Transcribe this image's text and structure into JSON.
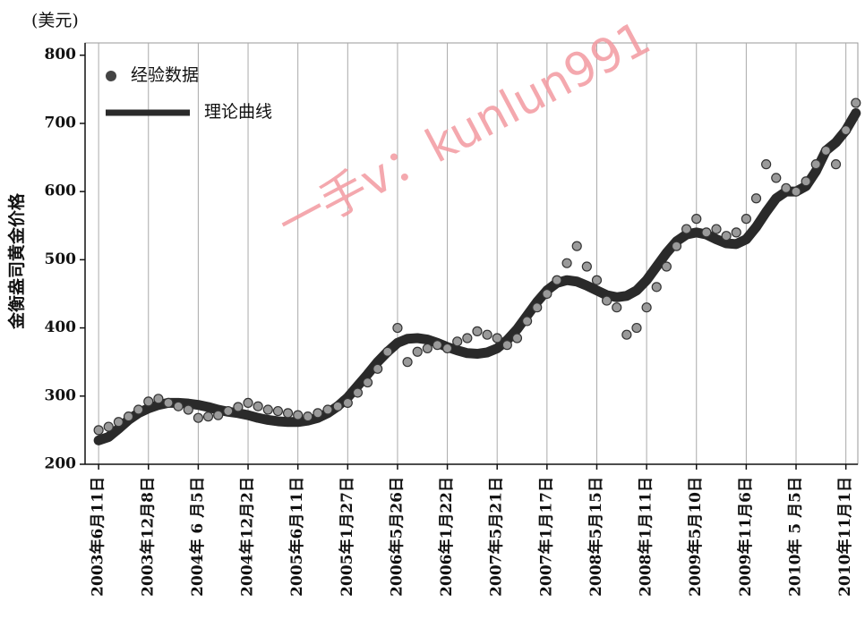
{
  "chart_data": {
    "type": "scatter-line",
    "y_unit": "(美元)",
    "ylabel": "金衡盎司黄金价格",
    "watermark": "一手v：kunlun991",
    "xlim": [
      -34,
      1905
    ],
    "ylim": [
      200,
      818
    ],
    "yticks": [
      200,
      300,
      400,
      500,
      600,
      700,
      800
    ],
    "xticks": [
      {
        "value": 0,
        "label": "2003年6月11日"
      },
      {
        "value": 125,
        "label": "2003年12月8日"
      },
      {
        "value": 250,
        "label": "2004年 6 月5日"
      },
      {
        "value": 375,
        "label": "2004年12月2日"
      },
      {
        "value": 500,
        "label": "2005年6月11日"
      },
      {
        "value": 625,
        "label": "2005年1月27日"
      },
      {
        "value": 750,
        "label": "2006年5月26日"
      },
      {
        "value": 875,
        "label": "2006年1月22日"
      },
      {
        "value": 1000,
        "label": "2007年5月21日"
      },
      {
        "value": 1125,
        "label": "2007年1月17日"
      },
      {
        "value": 1250,
        "label": "2008年5月15日"
      },
      {
        "value": 1375,
        "label": "2008年1月11日"
      },
      {
        "value": 1500,
        "label": "2009年5月10日"
      },
      {
        "value": 1625,
        "label": "2009年11月6日"
      },
      {
        "value": 1750,
        "label": "2010年 5 月5日"
      },
      {
        "value": 1875,
        "label": "2010年11月1日"
      }
    ],
    "grid": "x",
    "legend": "top-left",
    "x": [
      0,
      25,
      50,
      75,
      100,
      125,
      150,
      175,
      200,
      225,
      250,
      275,
      300,
      325,
      350,
      375,
      400,
      425,
      450,
      475,
      500,
      525,
      550,
      575,
      600,
      625,
      650,
      675,
      700,
      725,
      750,
      775,
      800,
      825,
      850,
      875,
      900,
      925,
      950,
      975,
      1000,
      1025,
      1050,
      1075,
      1100,
      1125,
      1150,
      1175,
      1200,
      1225,
      1250,
      1275,
      1300,
      1325,
      1350,
      1375,
      1400,
      1425,
      1450,
      1475,
      1500,
      1525,
      1550,
      1575,
      1600,
      1625,
      1650,
      1675,
      1700,
      1725,
      1750,
      1775,
      1800,
      1825,
      1850,
      1875,
      1900
    ],
    "series": [
      {
        "name": "经验数据",
        "kind": "scatter",
        "color": "#9a9a9a",
        "edge": "#333",
        "values": [
          250,
          255,
          262,
          270,
          280,
          292,
          296,
          290,
          285,
          280,
          268,
          270,
          272,
          278,
          284,
          290,
          285,
          280,
          278,
          275,
          272,
          270,
          275,
          280,
          285,
          290,
          305,
          320,
          340,
          365,
          400,
          350,
          365,
          370,
          375,
          370,
          380,
          385,
          395,
          390,
          385,
          375,
          385,
          410,
          430,
          450,
          470,
          495,
          520,
          490,
          470,
          440,
          430,
          390,
          400,
          430,
          460,
          490,
          520,
          545,
          560,
          540,
          545,
          535,
          540,
          560,
          590,
          640,
          620,
          605,
          600,
          615,
          640,
          660,
          640,
          690,
          730
        ]
      },
      {
        "name": "理论曲线",
        "kind": "line",
        "color": "#2a2a2a",
        "values": [
          235,
          240,
          252,
          265,
          275,
          282,
          287,
          290,
          290,
          289,
          287,
          284,
          280,
          277,
          275,
          272,
          268,
          265,
          263,
          262,
          262,
          264,
          268,
          275,
          285,
          298,
          315,
          332,
          350,
          365,
          378,
          384,
          385,
          383,
          378,
          372,
          367,
          363,
          362,
          364,
          370,
          382,
          398,
          418,
          438,
          455,
          466,
          470,
          468,
          462,
          455,
          448,
          445,
          447,
          455,
          470,
          490,
          510,
          527,
          537,
          540,
          537,
          530,
          524,
          523,
          530,
          548,
          570,
          590,
          600,
          600,
          608,
          630,
          660,
          672,
          690,
          715
        ]
      }
    ]
  }
}
